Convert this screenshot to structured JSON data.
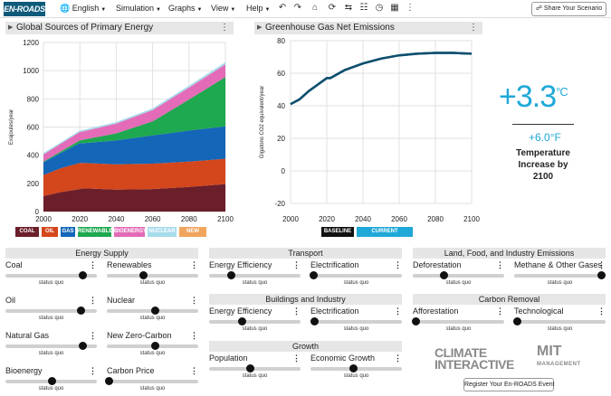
{
  "app": {
    "logo_text": "EN-ROADS"
  },
  "menu": {
    "language": "English",
    "simulation": "Simulation",
    "graphs": "Graphs",
    "view": "View",
    "help": "Help",
    "share": "Share Your Scenario"
  },
  "toolbar_icons": [
    "undo-icon",
    "redo-icon",
    "home-icon",
    "reset-icon",
    "compare-icon",
    "table-icon",
    "grid-icon"
  ],
  "panels": {
    "left_title": "Global Sources of Primary Energy",
    "right_title": "Greenhouse Gas Net Emissions"
  },
  "temperature": {
    "value_c": "+3.3",
    "unit_c": "°C",
    "value_f": "+6.0°F",
    "label": "Temperature Increase by 2100"
  },
  "chart_data": [
    {
      "type": "area",
      "title": "Global Sources of Primary Energy",
      "xlabel": "",
      "ylabel": "Exajoules/year",
      "xlim": [
        2000,
        2100
      ],
      "ylim": [
        0,
        1200
      ],
      "x": [
        2000,
        2010,
        2020,
        2022,
        2040,
        2060,
        2080,
        2100
      ],
      "series": [
        {
          "name": "COAL",
          "color": "#6b1f2a",
          "values": [
            110,
            140,
            160,
            165,
            155,
            160,
            175,
            195
          ]
        },
        {
          "name": "OIL",
          "color": "#d4461b",
          "values": [
            150,
            170,
            185,
            180,
            180,
            180,
            180,
            180
          ]
        },
        {
          "name": "GAS",
          "color": "#1466b8",
          "values": [
            90,
            110,
            140,
            140,
            170,
            200,
            220,
            230
          ]
        },
        {
          "name": "RENEWABLES",
          "color": "#1ea84f",
          "values": [
            5,
            10,
            20,
            25,
            50,
            100,
            220,
            350
          ]
        },
        {
          "name": "BIOENERGY",
          "color": "#e36bb7",
          "values": [
            50,
            55,
            60,
            60,
            70,
            80,
            85,
            90
          ]
        },
        {
          "name": "NUCLEAR",
          "color": "#a7dbea",
          "values": [
            10,
            10,
            10,
            10,
            10,
            12,
            14,
            15
          ]
        },
        {
          "name": "NEW ZERO",
          "color": "#f0a45e",
          "values": [
            0,
            0,
            0,
            0,
            0,
            0,
            0,
            0
          ]
        }
      ],
      "yticks": [
        0,
        200,
        400,
        600,
        800,
        1000,
        1200
      ],
      "xticks": [
        2000,
        2020,
        2040,
        2060,
        2080,
        2100
      ]
    },
    {
      "type": "line",
      "title": "Greenhouse Gas Net Emissions",
      "ylabel": "Gigatons CO2 equivalent/year",
      "xlim": [
        2000,
        2100
      ],
      "ylim": [
        -20,
        80
      ],
      "x": [
        2000,
        2005,
        2010,
        2015,
        2020,
        2022,
        2030,
        2040,
        2050,
        2060,
        2070,
        2080,
        2090,
        2100
      ],
      "series": [
        {
          "name": "BASELINE",
          "color": "#111111",
          "values": [
            41,
            44,
            49,
            53,
            57,
            57,
            62,
            66,
            69,
            71,
            72,
            72.5,
            72.5,
            72
          ]
        },
        {
          "name": "CURRENT SCENARIO",
          "color": "#1fa8d8",
          "values": [
            41,
            44,
            49,
            53,
            57,
            57,
            62,
            66,
            69,
            71,
            72,
            72.5,
            72.5,
            72
          ]
        }
      ],
      "yticks": [
        -20,
        0,
        20,
        40,
        60,
        80
      ],
      "xticks": [
        2000,
        2020,
        2040,
        2060,
        2080,
        2100
      ]
    }
  ],
  "sections": {
    "energy_supply": "Energy Supply",
    "transport": "Transport",
    "buildings": "Buildings and Industry",
    "growth": "Growth",
    "land": "Land, Food, and Industry Emissions",
    "carbon_removal": "Carbon Removal"
  },
  "sliders": {
    "coal": {
      "label": "Coal",
      "status": "status quo",
      "position": 0.84
    },
    "renewables": {
      "label": "Renewables",
      "status": "status quo",
      "position": 0.4
    },
    "oil": {
      "label": "Oil",
      "status": "status quo",
      "position": 0.82
    },
    "nuclear": {
      "label": "Nuclear",
      "status": "status quo",
      "position": 0.52
    },
    "natural_gas": {
      "label": "Natural Gas",
      "status": "status quo",
      "position": 0.84
    },
    "new_zero_carbon": {
      "label": "New Zero-Carbon",
      "status": "status quo",
      "position": 0.52
    },
    "bioenergy": {
      "label": "Bioenergy",
      "status": "status quo",
      "position": 0.5
    },
    "carbon_price": {
      "label": "Carbon Price",
      "status": "status quo",
      "position": 0.02
    },
    "transport_efficiency": {
      "label": "Energy Efficiency",
      "status": "status quo",
      "position": 0.24
    },
    "transport_electrification": {
      "label": "Electrification",
      "status": "status quo",
      "position": 0.03
    },
    "buildings_efficiency": {
      "label": "Energy Efficiency",
      "status": "status quo",
      "position": 0.36
    },
    "buildings_electrification": {
      "label": "Electrification",
      "status": "status quo",
      "position": 0.04
    },
    "population": {
      "label": "Population",
      "status": "status quo",
      "position": 0.45
    },
    "economic_growth": {
      "label": "Economic Growth",
      "status": "status quo",
      "position": 0.47
    },
    "deforestation": {
      "label": "Deforestation",
      "status": "status quo",
      "position": 0.34
    },
    "methane": {
      "label": "Methane & Other Gases",
      "status": "status quo",
      "position": 0.95
    },
    "afforestation": {
      "label": "Afforestation",
      "status": "status quo",
      "position": 0.03
    },
    "technological": {
      "label": "Technological",
      "status": "status quo",
      "position": 0.03
    }
  },
  "brands": {
    "ci_line1": "CLIMATE",
    "ci_line2": "INTERACTIVE",
    "mit": "MIT",
    "mit_sub": "MANAGEMENT"
  },
  "register": "Register Your En-ROADS Event"
}
